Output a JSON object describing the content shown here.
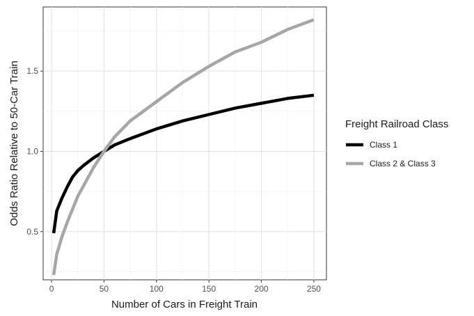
{
  "chart_data": {
    "type": "line",
    "xlabel": "Number of Cars in Freight Train",
    "ylabel": "Odds Ratio Relative to 50-Car Train",
    "xlim": [
      -8,
      262
    ],
    "ylim": [
      0.2,
      1.9
    ],
    "x_ticks": [
      0,
      50,
      100,
      150,
      200,
      250
    ],
    "x_minor_ticks": [
      25,
      75,
      125,
      175,
      225
    ],
    "y_ticks": [
      0.5,
      1.0,
      1.5
    ],
    "y_tick_labels": [
      "0.5",
      "1.0",
      "1.5"
    ],
    "y_minor_ticks": [
      0.25,
      0.75,
      1.25,
      1.75
    ],
    "grid": true,
    "legend": {
      "title": "Freight Railroad Class",
      "placement": "right"
    },
    "series": [
      {
        "name": "Class 1",
        "color": "#000000",
        "x": [
          2,
          5,
          10,
          15,
          20,
          25,
          30,
          40,
          50,
          60,
          75,
          100,
          125,
          150,
          175,
          200,
          225,
          250
        ],
        "y": [
          0.49,
          0.63,
          0.71,
          0.78,
          0.84,
          0.88,
          0.91,
          0.96,
          1.0,
          1.04,
          1.08,
          1.14,
          1.19,
          1.23,
          1.27,
          1.3,
          1.33,
          1.35
        ]
      },
      {
        "name": "Class 2 & Class 3",
        "color": "#a6a6a6",
        "x": [
          2,
          5,
          10,
          15,
          20,
          25,
          30,
          40,
          50,
          60,
          75,
          100,
          125,
          150,
          175,
          200,
          225,
          250
        ],
        "y": [
          0.23,
          0.36,
          0.47,
          0.56,
          0.64,
          0.72,
          0.78,
          0.9,
          1.0,
          1.09,
          1.19,
          1.31,
          1.43,
          1.53,
          1.62,
          1.68,
          1.76,
          1.82
        ]
      }
    ]
  }
}
